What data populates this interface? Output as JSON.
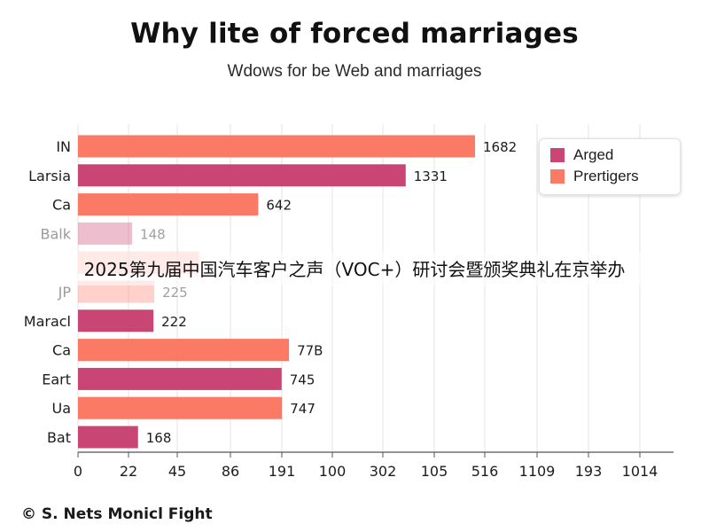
{
  "title": "Why lite of forced marriages",
  "subtitle": "Wdows for be Web and marriages",
  "overlay_caption": "2025第九届中国汽车客户之声（VOC+）研讨会暨颁奖典礼在京举办",
  "footer": "© S. Nets Monicl Fight",
  "colors": {
    "arged": "#c94573",
    "prertigers": "#fb7a66"
  },
  "legend": [
    {
      "label": "Arged",
      "color": "#c94573"
    },
    {
      "label": "Prertigers",
      "color": "#fb7a66"
    }
  ],
  "chart_data": {
    "type": "bar",
    "orientation": "horizontal",
    "title": "Why lite of forced marriages",
    "subtitle": "Wdows for be Web and marriages",
    "x_tick_labels": [
      "0",
      "22",
      "45",
      "86",
      "191",
      "100",
      "302",
      "105",
      "516",
      "1109",
      "193",
      "1014"
    ],
    "bars": [
      {
        "category": "IN",
        "label": "1682",
        "value": 1682,
        "series": "Prertigers"
      },
      {
        "category": "Larsia",
        "label": "1331",
        "value": 1331,
        "series": "Arged"
      },
      {
        "category": "Ca",
        "label": "642",
        "value": 642,
        "series": "Prertigers"
      },
      {
        "category": "Balk",
        "label": "148",
        "value": 148,
        "series": "Arged"
      },
      {
        "category": "",
        "label": "",
        "value": 395,
        "series": "Prertigers"
      },
      {
        "category": "JP",
        "label": "225",
        "value": 225,
        "series": "Prertigers"
      },
      {
        "category": "Maracl",
        "label": "222",
        "value": 222,
        "series": "Arged"
      },
      {
        "category": "Ca",
        "label": "77B",
        "value": 778,
        "series": "Prertigers"
      },
      {
        "category": "Eart",
        "label": "745",
        "value": 745,
        "series": "Arged"
      },
      {
        "category": "Ua",
        "label": "747",
        "value": 747,
        "series": "Prertigers"
      },
      {
        "category": "Bat",
        "label": "168",
        "value": 168,
        "series": "Arged"
      }
    ],
    "legend_position": "top-right",
    "grid": "vertical"
  }
}
